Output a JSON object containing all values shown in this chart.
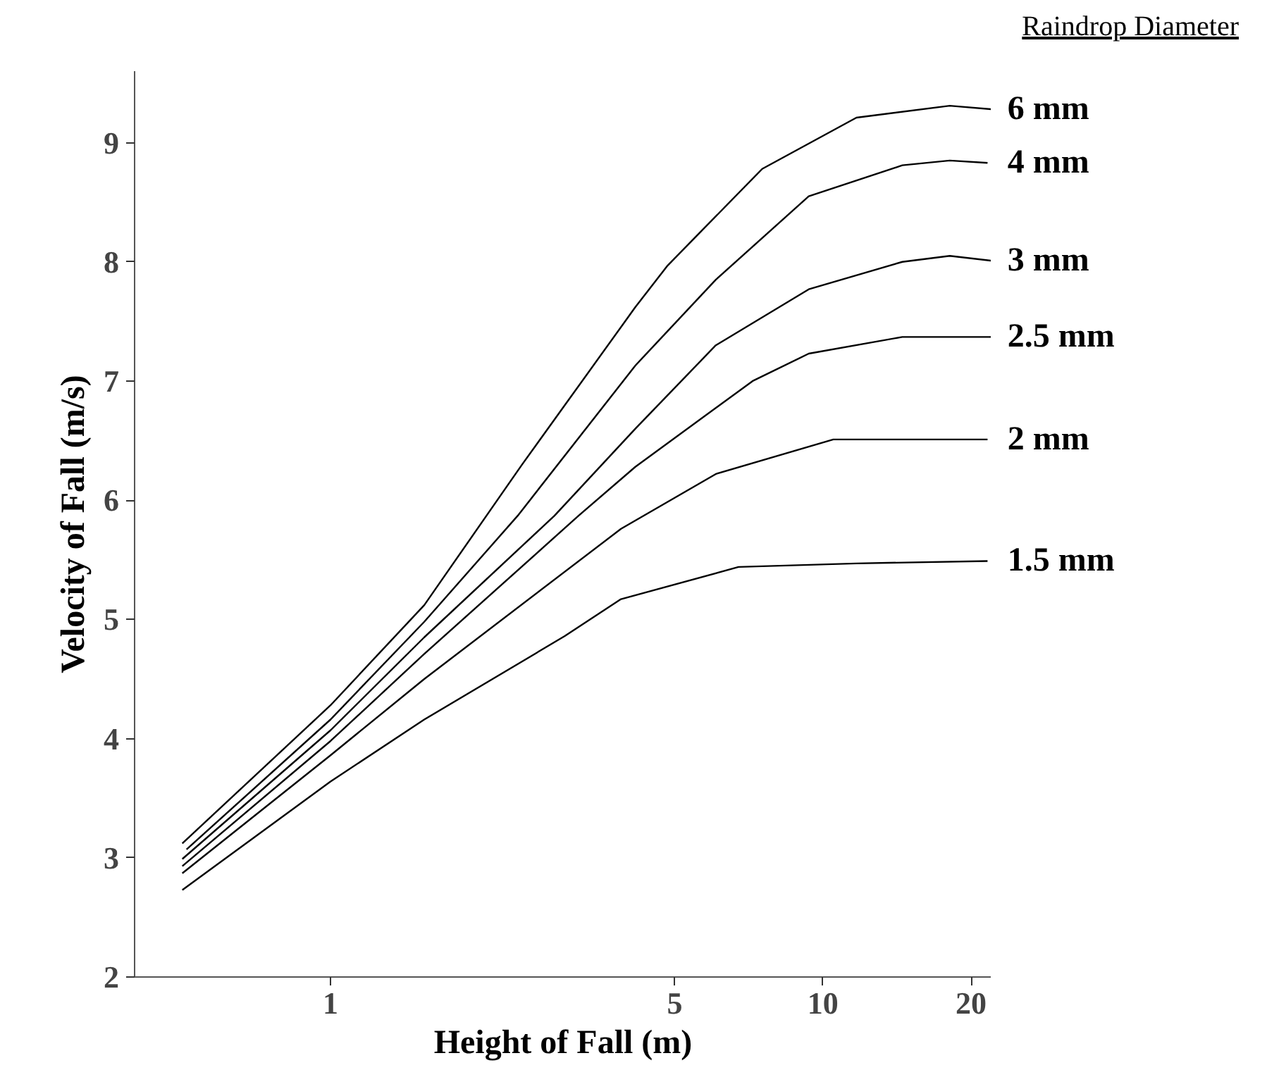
{
  "chart_data": {
    "type": "line",
    "xlabel": "Height of Fall (m)",
    "ylabel": "Velocity of Fall (m/s)",
    "legend_title": "Raindrop Diameter",
    "log": "x",
    "xlim": [
      0.4,
      22
    ],
    "xticks": [
      1,
      5,
      10,
      20
    ],
    "ylim": [
      2,
      9.6
    ],
    "yticks": [
      2,
      3,
      4,
      5,
      6,
      7,
      8,
      9
    ],
    "series": [
      {
        "name": "6 mm",
        "color": "#000000",
        "x": [
          0.5,
          1,
          1.55,
          2.45,
          4.16,
          4.84,
          7.53,
          11.7,
          18.1,
          22
        ],
        "values": [
          3.12,
          4.28,
          5.12,
          6.3,
          7.62,
          7.97,
          8.78,
          9.21,
          9.31,
          9.28
        ]
      },
      {
        "name": "4 mm",
        "color": "#000000",
        "x": [
          0.51,
          1,
          1.55,
          2.4,
          4.16,
          6.06,
          9.36,
          14.5,
          18.1,
          21.6
        ],
        "values": [
          3.07,
          4.16,
          4.98,
          5.87,
          7.13,
          7.85,
          8.55,
          8.81,
          8.85,
          8.83
        ]
      },
      {
        "name": "3 mm",
        "color": "#000000",
        "x": [
          0.5,
          1,
          1.55,
          2.85,
          4.16,
          6.06,
          9.36,
          14.5,
          18.1,
          22
        ],
        "values": [
          2.99,
          4.07,
          4.85,
          5.87,
          6.6,
          7.3,
          7.77,
          8.0,
          8.05,
          8.01
        ]
      },
      {
        "name": "2.5 mm",
        "color": "#000000",
        "x": [
          0.5,
          1,
          1.55,
          3.19,
          4.16,
          7.2,
          9.36,
          14.5,
          22
        ],
        "values": [
          2.93,
          3.98,
          4.71,
          5.87,
          6.28,
          7.0,
          7.23,
          7.37,
          7.37
        ]
      },
      {
        "name": "2 mm",
        "color": "#000000",
        "x": [
          0.5,
          1,
          1.55,
          3.89,
          6.06,
          10.5,
          14.5,
          21.6
        ],
        "values": [
          2.87,
          3.86,
          4.5,
          5.76,
          6.22,
          6.51,
          6.51,
          6.51
        ]
      },
      {
        "name": "1.5 mm",
        "color": "#000000",
        "x": [
          0.5,
          1,
          1.55,
          2.99,
          3.89,
          6.74,
          11.7,
          21.6
        ],
        "values": [
          2.73,
          3.64,
          4.16,
          4.86,
          5.17,
          5.44,
          5.47,
          5.49
        ]
      }
    ]
  }
}
